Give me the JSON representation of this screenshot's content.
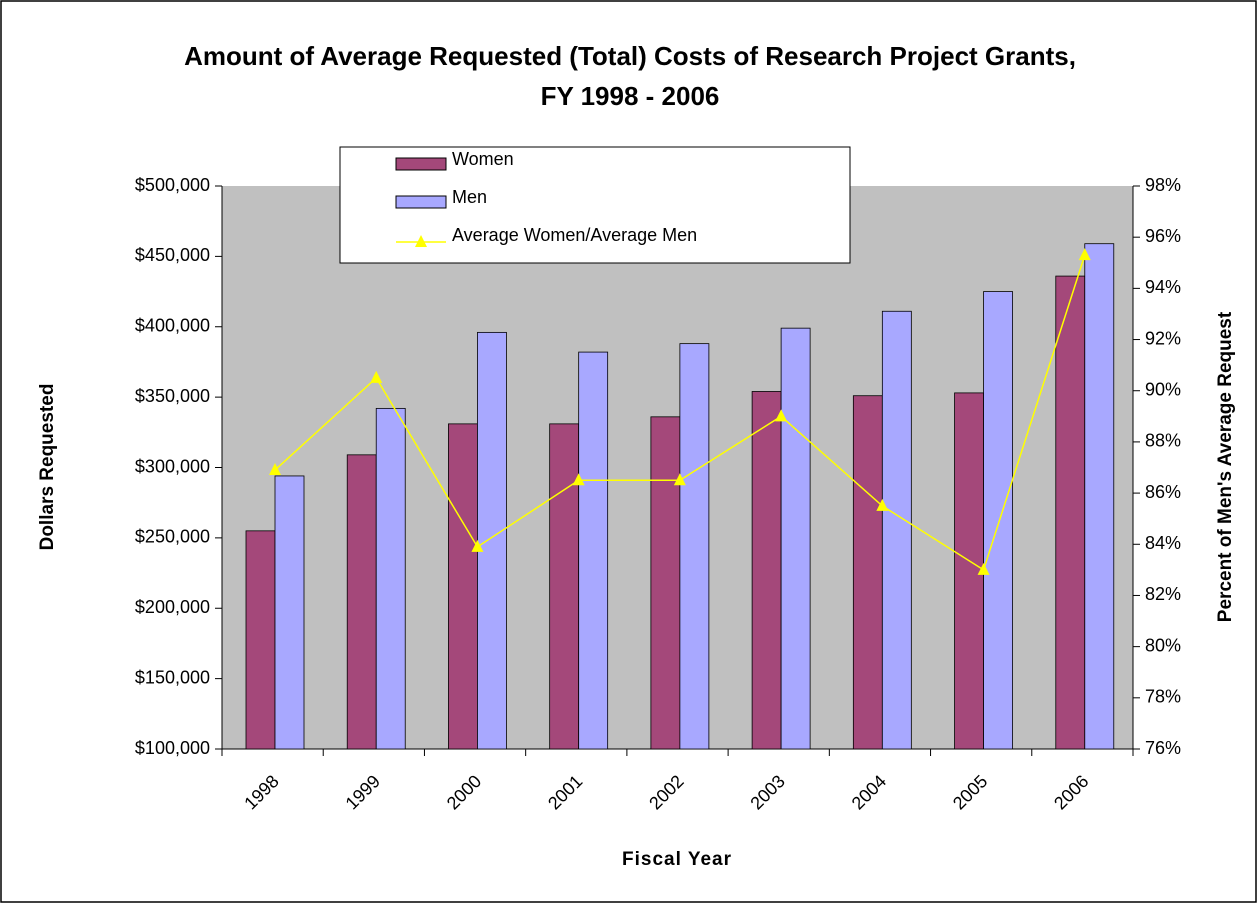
{
  "chart_data": {
    "type": "bar-line",
    "title": "Amount of Average Requested (Total) Costs of Research Project Grants, FY 1998 - 2006",
    "x_label": "Fiscal Year",
    "y_label": "Dollars Requested",
    "y2_label": "Percent of Men's Average Request",
    "categories": [
      "1998",
      "1999",
      "2000",
      "2001",
      "2002",
      "2003",
      "2004",
      "2005",
      "2006"
    ],
    "series": [
      {
        "name": "Women",
        "type": "bar",
        "color": "#a4487a",
        "values": [
          255000,
          309000,
          331000,
          331000,
          336000,
          354000,
          351000,
          353000,
          436000
        ]
      },
      {
        "name": "Men",
        "type": "bar",
        "color": "#a8a8ff",
        "values": [
          294000,
          342000,
          396000,
          382000,
          388000,
          399000,
          411000,
          425000,
          459000
        ]
      },
      {
        "name": "Average Women/Average Men",
        "type": "line",
        "axis": "y2",
        "color": "#ffff00",
        "values": [
          86.9,
          90.5,
          83.9,
          86.5,
          86.5,
          89.0,
          85.5,
          83.0,
          95.3
        ]
      }
    ],
    "ylim": [
      100000,
      500000
    ],
    "yticks": [
      {
        "value": 100000,
        "label": "$100,000"
      },
      {
        "value": 150000,
        "label": "$150,000"
      },
      {
        "value": 200000,
        "label": "$200,000"
      },
      {
        "value": 250000,
        "label": "$250,000"
      },
      {
        "value": 300000,
        "label": "$300,000"
      },
      {
        "value": 350000,
        "label": "$350,000"
      },
      {
        "value": 400000,
        "label": "$400,000"
      },
      {
        "value": 450000,
        "label": "$450,000"
      },
      {
        "value": 500000,
        "label": "$500,000"
      }
    ],
    "y2lim": [
      76,
      98
    ],
    "y2ticks": [
      {
        "value": 76,
        "label": "76%"
      },
      {
        "value": 78,
        "label": "78%"
      },
      {
        "value": 80,
        "label": "80%"
      },
      {
        "value": 82,
        "label": "82%"
      },
      {
        "value": 84,
        "label": "84%"
      },
      {
        "value": 86,
        "label": "86%"
      },
      {
        "value": 88,
        "label": "88%"
      },
      {
        "value": 90,
        "label": "90%"
      },
      {
        "value": 92,
        "label": "92%"
      },
      {
        "value": 94,
        "label": "94%"
      },
      {
        "value": 96,
        "label": "96%"
      },
      {
        "value": 98,
        "label": "98%"
      }
    ],
    "plot_background": "#c0c0c0"
  }
}
